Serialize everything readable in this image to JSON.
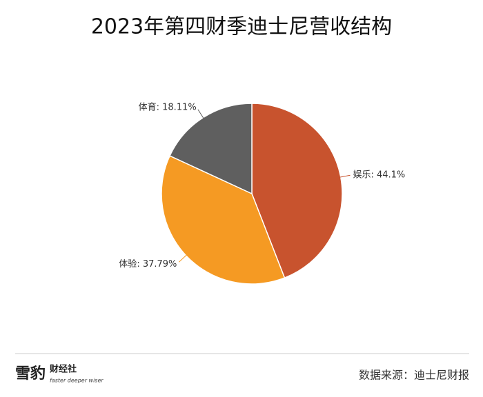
{
  "chart_data": {
    "type": "pie",
    "title": "2023年第四财季迪士尼营收结构",
    "categories": [
      "娱乐",
      "体验",
      "体育"
    ],
    "label_separator": ": ",
    "values": [
      44.1,
      37.79,
      18.11
    ],
    "value_labels": [
      "44.1%",
      "37.79%",
      "18.11%"
    ],
    "colors": [
      "#c8532e",
      "#f59a23",
      "#5f5f5f"
    ]
  },
  "footer": {
    "logo_main": "雪豹",
    "logo_side": "财经社",
    "logo_slogan": "faster deeper wiser",
    "source": "数据来源：迪士尼财报"
  }
}
